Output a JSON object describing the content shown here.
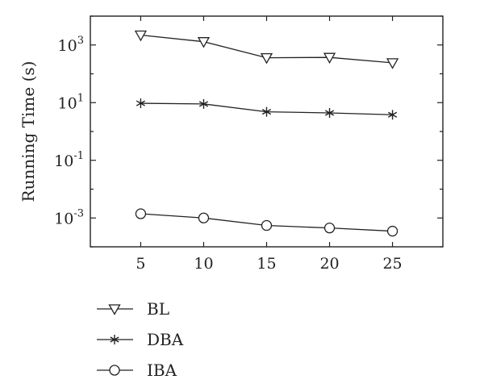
{
  "chart_data": {
    "type": "line",
    "title": "",
    "xlabel": "",
    "ylabel": "Running Time (s)",
    "yscale": "log",
    "xlim": [
      1,
      29
    ],
    "ylim": [
      0.0001,
      10000
    ],
    "x": [
      5,
      10,
      15,
      20,
      25
    ],
    "xticks": [
      "5",
      "10",
      "15",
      "20",
      "25"
    ],
    "yticks": [
      {
        "base": "10",
        "exp": "3"
      },
      {
        "base": "10",
        "exp": "1"
      },
      {
        "base": "10",
        "exp": "-1"
      },
      {
        "base": "10",
        "exp": "-3"
      }
    ],
    "grid": false,
    "legend_position": "bottom-left",
    "series": [
      {
        "name": "BL",
        "marker": "triangle-down",
        "values": [
          2200,
          1300,
          360,
          370,
          240
        ]
      },
      {
        "name": "DBA",
        "marker": "asterisk",
        "values": [
          9.5,
          9.0,
          4.8,
          4.4,
          3.8
        ]
      },
      {
        "name": "IBA",
        "marker": "circle",
        "values": [
          0.0014,
          0.001,
          0.00055,
          0.00045,
          0.00035
        ]
      }
    ]
  }
}
